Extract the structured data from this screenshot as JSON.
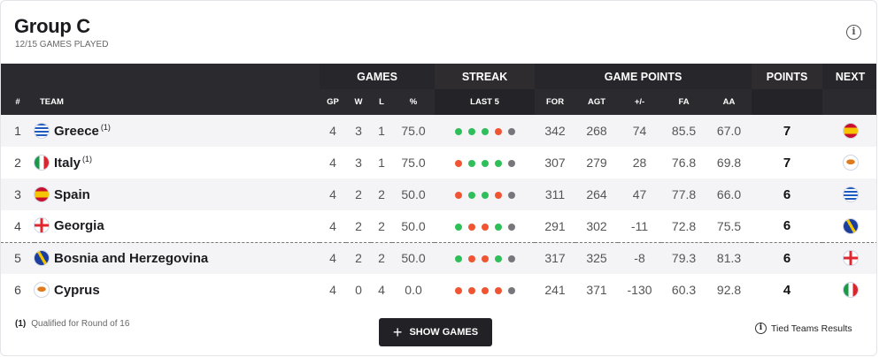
{
  "header": {
    "title": "Group C",
    "subtitle": "12/15 GAMES PLAYED",
    "info_icon": "info-icon"
  },
  "columns": {
    "games": "GAMES",
    "streak": "STREAK",
    "game_points": "GAME POINTS",
    "points": "POINTS",
    "next": "NEXT",
    "rank": "#",
    "team": "TEAM",
    "gp": "GP",
    "w": "W",
    "l": "L",
    "pct": "%",
    "last5": "LAST 5",
    "for": "FOR",
    "agt": "AGT",
    "diff": "+/-",
    "fa": "FA",
    "aa": "AA"
  },
  "colors": {
    "win": "#2fbf5a",
    "loss": "#ef5533",
    "pending": "#77777b",
    "header_bg": "#2b2a2f"
  },
  "rows": [
    {
      "rank": "1",
      "team": "Greece",
      "note": "(1)",
      "flag": "greece",
      "gp": "4",
      "w": "3",
      "l": "1",
      "pct": "75.0",
      "streak": [
        "W",
        "W",
        "W",
        "L",
        "-"
      ],
      "for": "342",
      "agt": "268",
      "diff": "74",
      "fa": "85.5",
      "aa": "67.0",
      "points": "7",
      "next": "spain"
    },
    {
      "rank": "2",
      "team": "Italy",
      "note": "(1)",
      "flag": "italy",
      "gp": "4",
      "w": "3",
      "l": "1",
      "pct": "75.0",
      "streak": [
        "L",
        "W",
        "W",
        "W",
        "-"
      ],
      "for": "307",
      "agt": "279",
      "diff": "28",
      "fa": "76.8",
      "aa": "69.8",
      "points": "7",
      "next": "cyprus"
    },
    {
      "rank": "3",
      "team": "Spain",
      "note": "",
      "flag": "spain",
      "gp": "4",
      "w": "2",
      "l": "2",
      "pct": "50.0",
      "streak": [
        "L",
        "W",
        "W",
        "L",
        "-"
      ],
      "for": "311",
      "agt": "264",
      "diff": "47",
      "fa": "77.8",
      "aa": "66.0",
      "points": "6",
      "next": "greece"
    },
    {
      "rank": "4",
      "team": "Georgia",
      "note": "",
      "flag": "georgia",
      "gp": "4",
      "w": "2",
      "l": "2",
      "pct": "50.0",
      "streak": [
        "W",
        "L",
        "L",
        "W",
        "-"
      ],
      "for": "291",
      "agt": "302",
      "diff": "-11",
      "fa": "72.8",
      "aa": "75.5",
      "points": "6",
      "next": "bosnia"
    },
    {
      "rank": "5",
      "team": "Bosnia and Herzegovina",
      "note": "",
      "flag": "bosnia",
      "gp": "4",
      "w": "2",
      "l": "2",
      "pct": "50.0",
      "streak": [
        "W",
        "L",
        "L",
        "W",
        "-"
      ],
      "for": "317",
      "agt": "325",
      "diff": "-8",
      "fa": "79.3",
      "aa": "81.3",
      "points": "6",
      "next": "georgia"
    },
    {
      "rank": "6",
      "team": "Cyprus",
      "note": "",
      "flag": "cyprus",
      "gp": "4",
      "w": "0",
      "l": "4",
      "pct": "0.0",
      "streak": [
        "L",
        "L",
        "L",
        "L",
        "-"
      ],
      "for": "241",
      "agt": "371",
      "diff": "-130",
      "fa": "60.3",
      "aa": "92.8",
      "points": "4",
      "next": "italy"
    }
  ],
  "footer": {
    "note_marker": "(1)",
    "note_text": "Qualified for Round of 16",
    "show_games": "SHOW GAMES",
    "tied": "Tied Teams Results"
  }
}
